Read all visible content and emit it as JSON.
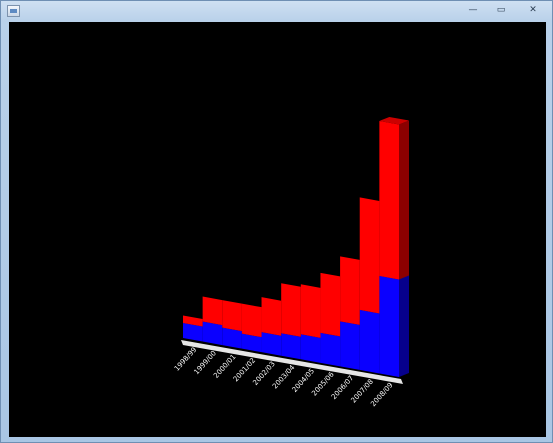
{
  "window": {
    "title": "",
    "minimize_glyph": "—",
    "maximize_glyph": "▭",
    "close_glyph": "✕"
  },
  "chart_data": {
    "type": "bar",
    "stacked": true,
    "three_d": true,
    "title": "",
    "xlabel": "",
    "ylabel": "",
    "categories": [
      "1998/99",
      "1999/00",
      "2000/01",
      "2001/02",
      "2002/03",
      "2003/04",
      "2004/05",
      "2005/06",
      "2006/07",
      "2007/08",
      "2008/09"
    ],
    "ylim": [
      0,
      100
    ],
    "series": [
      {
        "color": "#0a00ff",
        "values": [
          6,
          8,
          7,
          6,
          8,
          9,
          10,
          12,
          18,
          24,
          39
        ]
      },
      {
        "color": "#ff0000",
        "values": [
          3,
          10,
          11,
          12,
          14,
          20,
          20,
          24,
          26,
          45,
          62
        ]
      }
    ],
    "background": "#000000",
    "grid": false,
    "legend": "none"
  }
}
